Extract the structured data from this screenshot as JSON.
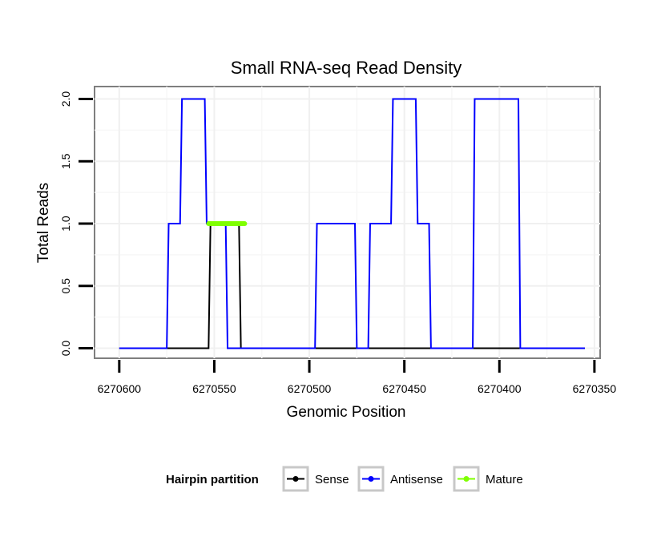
{
  "chart_data": {
    "type": "line",
    "title": "Small RNA-seq Read Density",
    "xlabel": "Genomic Position",
    "ylabel": "Total Reads",
    "x_reversed": true,
    "xlim": [
      6270613,
      6270347
    ],
    "ylim": [
      -0.08,
      2.1
    ],
    "x_ticks": [
      6270600,
      6270550,
      6270500,
      6270450,
      6270400,
      6270350
    ],
    "x_tick_labels": [
      "6270600",
      "6270550",
      "6270500",
      "6270450",
      "6270400",
      "6270350"
    ],
    "y_ticks": [
      0.0,
      0.5,
      1.0,
      1.5,
      2.0
    ],
    "y_tick_labels": [
      "0.0",
      "0.5",
      "1.0",
      "1.5",
      "2.0"
    ],
    "grid": true,
    "legend_position": "bottom",
    "legend_title": "Hairpin partition",
    "series": [
      {
        "name": "Sense",
        "color": "#000000",
        "x": [
          6270600,
          6270553,
          6270552,
          6270537,
          6270536,
          6270355
        ],
        "y": [
          0,
          0,
          1,
          1,
          0,
          0
        ]
      },
      {
        "name": "Antisense",
        "color": "#0000ff",
        "x": [
          6270600,
          6270575,
          6270574,
          6270568,
          6270567,
          6270555,
          6270554,
          6270544,
          6270543,
          6270537,
          6270536,
          6270497,
          6270496,
          6270476,
          6270475,
          6270469,
          6270468,
          6270457,
          6270456,
          6270444,
          6270443,
          6270437,
          6270436,
          6270430,
          6270429,
          6270414,
          6270413,
          6270390,
          6270389,
          6270355
        ],
        "y": [
          0,
          0,
          1,
          1,
          2,
          2,
          1,
          1,
          0,
          0,
          0,
          0,
          1,
          1,
          0,
          0,
          1,
          1,
          2,
          2,
          1,
          1,
          0,
          0,
          0,
          0,
          2,
          2,
          0,
          0
        ]
      },
      {
        "name": "Mature",
        "color": "#7fff00",
        "x": [
          6270553,
          6270534
        ],
        "y": [
          1,
          1
        ]
      }
    ]
  }
}
